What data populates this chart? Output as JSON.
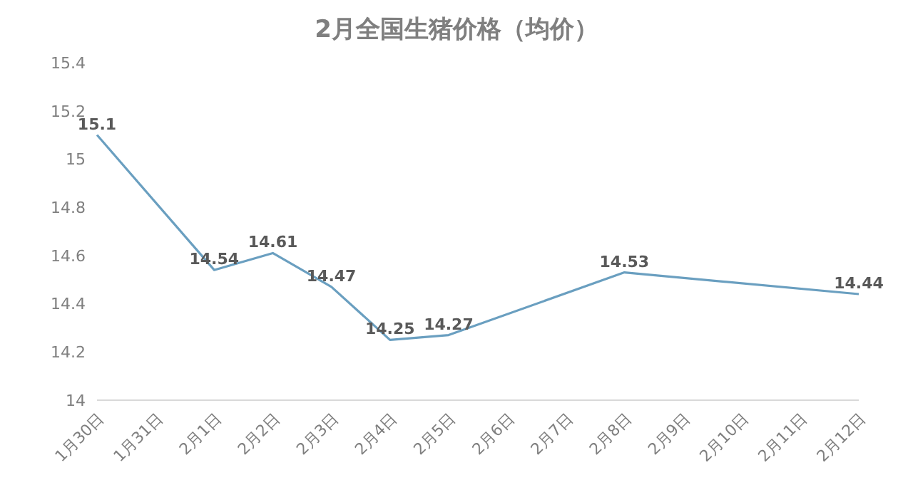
{
  "chart_data": {
    "type": "line",
    "title": "2月全国生猪价格（均价）",
    "categories": [
      "1月30日",
      "1月31日",
      "2月1日",
      "2月2日",
      "2月3日",
      "2月4日",
      "2月5日",
      "2月6日",
      "2月7日",
      "2月8日",
      "2月9日",
      "2月10日",
      "2月11日",
      "2月12日"
    ],
    "series": [
      {
        "color": "#6a9fc0",
        "values": [
          15.1,
          null,
          14.54,
          14.61,
          14.47,
          14.25,
          14.27,
          null,
          null,
          14.53,
          null,
          null,
          null,
          14.44
        ]
      }
    ],
    "ylim": [
      14,
      15.4
    ],
    "yticks": [
      14,
      14.2,
      14.4,
      14.6,
      14.8,
      15,
      15.2,
      15.4
    ],
    "grid": false,
    "legend": false,
    "marker": "none",
    "line_style": "solid",
    "data_labels": true
  }
}
